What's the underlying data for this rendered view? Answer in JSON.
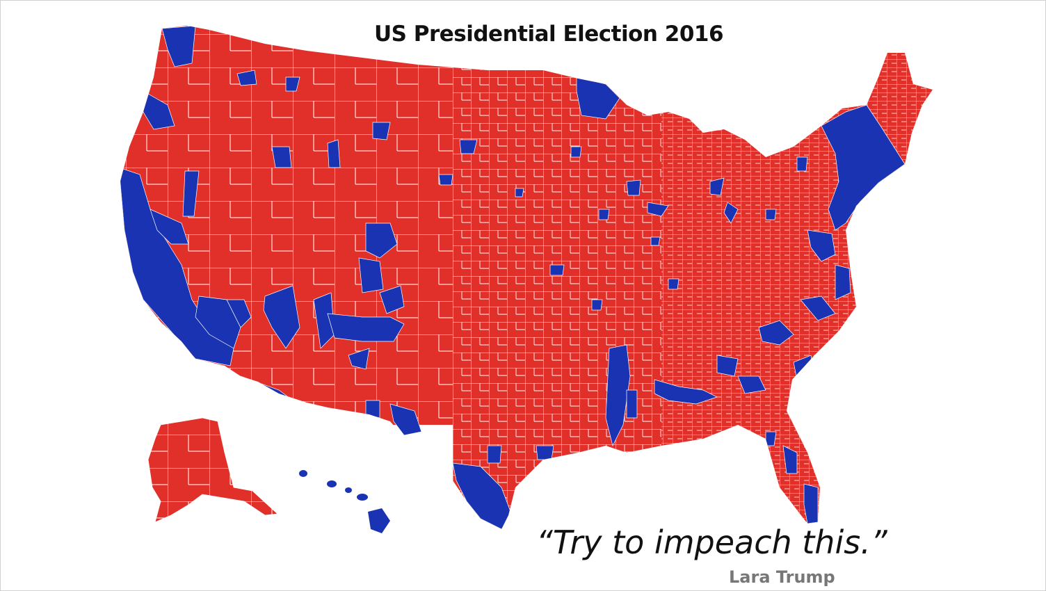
{
  "title": "US Presidential Election 2016",
  "quote": "“Try to impeach this.”",
  "attribution": "Lara Trump",
  "map": {
    "type": "county-level choropleth",
    "colors": {
      "republican": "#e1302a",
      "democrat": "#1a33b3",
      "border": "#ffffff"
    },
    "regions_shown": [
      "Contiguous United States",
      "Alaska",
      "Hawaii"
    ]
  }
}
